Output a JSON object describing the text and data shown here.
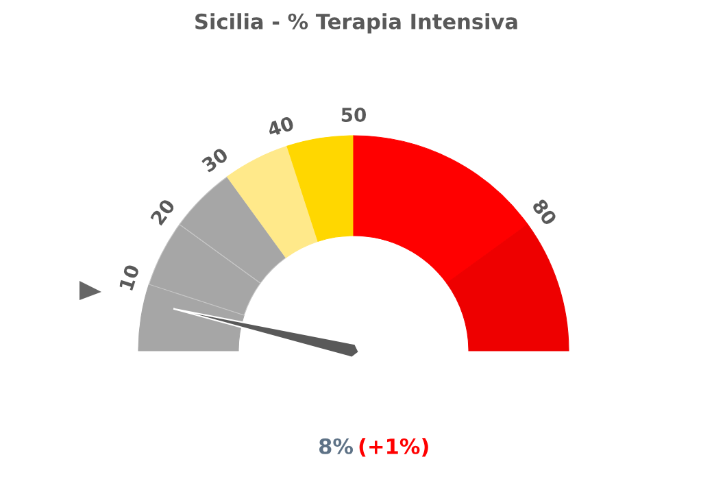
{
  "chart_data": {
    "type": "donut",
    "title": "Sicilia - % Terapia Intensiva",
    "categories": [
      "10",
      "20",
      "30",
      "40",
      "50",
      "80",
      null
    ],
    "values": [
      10,
      10,
      10,
      10,
      10,
      30,
      20
    ],
    "colors": [
      "#a6a6a6",
      "#a6a6a6",
      "#a6a6a6",
      "#ffe98a",
      "#ffd700",
      "#ff0000",
      "#ee0000"
    ],
    "needle": "10",
    "annotations": [
      "8%",
      "(+1%)"
    ]
  }
}
